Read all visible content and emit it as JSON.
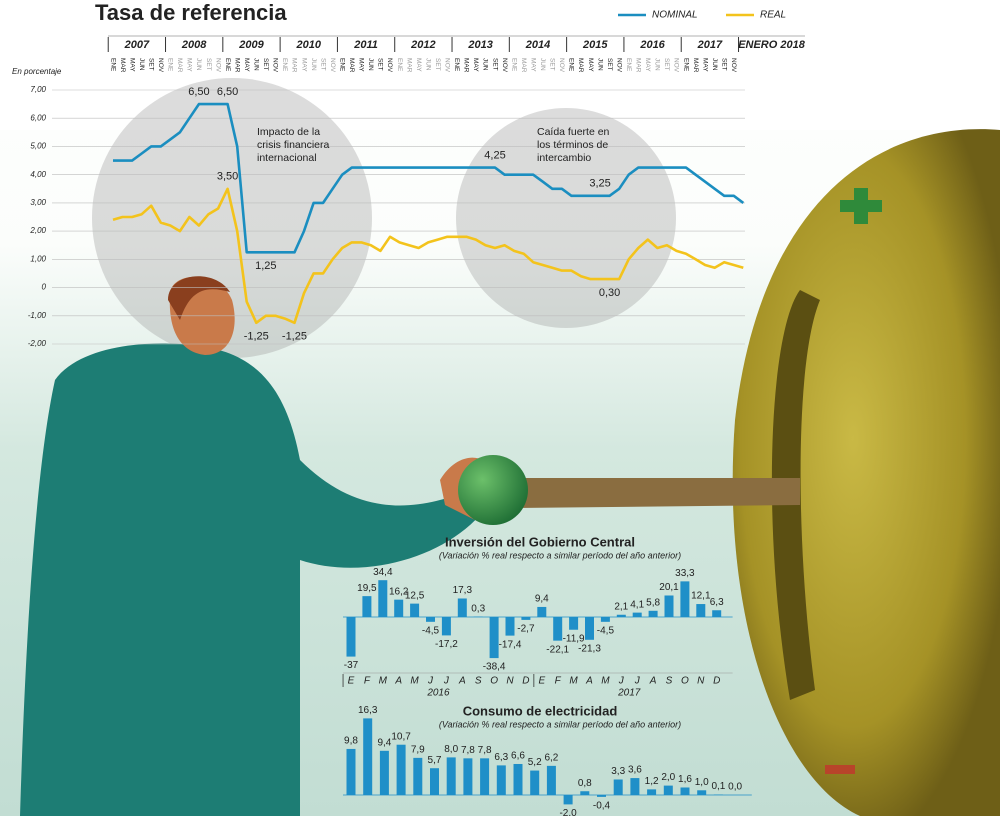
{
  "chart_data": [
    {
      "type": "line",
      "title": "Tasa de referencia",
      "y_label": "En porcentaje",
      "categories": [
        "ENE",
        "MAR",
        "MAY",
        "JUN",
        "SET",
        "NOV",
        "ENE",
        "MAR",
        "MAY",
        "JUN",
        "SET",
        "NOV",
        "ENE",
        "MAR",
        "MAY",
        "JUN",
        "SET",
        "NOV",
        "ENE",
        "MAR",
        "MAY",
        "JUN",
        "SET",
        "NOV",
        "ENE",
        "MAR",
        "MAY",
        "JUN",
        "SET",
        "NOV",
        "ENE",
        "MAR",
        "MAY",
        "JUN",
        "SET",
        "NOV",
        "ENE",
        "MAR",
        "MAY",
        "JUN",
        "SET",
        "NOV",
        "ENE",
        "MAR",
        "MAY",
        "JUN",
        "SET",
        "NOV",
        "ENE",
        "MAR",
        "MAY",
        "JUN",
        "SET",
        "NOV",
        "ENE",
        "MAR",
        "MAY",
        "JUN",
        "SET",
        "NOV",
        "ENE",
        "MAR",
        "MAY",
        "JUN",
        "SET",
        "NOV",
        null
      ],
      "year_labels": [
        "2007",
        "2008",
        "2009",
        "2010",
        "2011",
        "2012",
        "2013",
        "2014",
        "2015",
        "2016",
        "2017",
        "ENERO 2018"
      ],
      "series": [
        {
          "name": "NOMINAL",
          "color": "#1b8ec0",
          "values": [
            4.5,
            4.5,
            4.5,
            4.75,
            5,
            5,
            5.25,
            5.5,
            6,
            6.5,
            6.5,
            6.5,
            6.5,
            5,
            1.25,
            1.25,
            1.25,
            1.25,
            1.25,
            1.25,
            2,
            3,
            3,
            3.5,
            4,
            4.25,
            4.25,
            4.25,
            4.25,
            4.25,
            4.25,
            4.25,
            4.25,
            4.25,
            4.25,
            4.25,
            4.25,
            4.25,
            4.25,
            4.25,
            4.25,
            4,
            4,
            4,
            4,
            3.75,
            3.5,
            3.5,
            3.25,
            3.25,
            3.25,
            3.25,
            3.25,
            3.5,
            4,
            4.25,
            4.25,
            4.25,
            4.25,
            4.25,
            4.25,
            4,
            3.75,
            3.5,
            3.25,
            3.25,
            3
          ],
          "value_labels": [
            null,
            null,
            null,
            null,
            null,
            null,
            null,
            null,
            null,
            "6,50",
            null,
            null,
            "6,50",
            null,
            null,
            null,
            "1,25",
            null,
            null,
            null,
            null,
            null,
            null,
            null,
            null,
            null,
            null,
            null,
            null,
            null,
            null,
            null,
            null,
            null,
            null,
            null,
            null,
            null,
            null,
            null,
            "4,25",
            null,
            null,
            null,
            null,
            null,
            null,
            null,
            null,
            null,
            null,
            "3,25",
            null,
            null,
            null,
            null,
            null,
            null,
            null,
            null,
            null,
            null,
            null,
            null,
            null,
            null,
            null
          ]
        },
        {
          "name": "REAL",
          "color": "#f3c31c",
          "values": [
            2.4,
            2.5,
            2.5,
            2.6,
            2.9,
            2.3,
            2.2,
            2,
            2.5,
            2.2,
            2.6,
            2.8,
            3.5,
            2,
            -0.5,
            -1.25,
            -1,
            -1,
            -1.1,
            -1.25,
            -0.2,
            0.5,
            0.5,
            1,
            1.4,
            1.6,
            1.6,
            1.5,
            1.3,
            1.8,
            1.6,
            1.5,
            1.4,
            1.6,
            1.7,
            1.8,
            1.8,
            1.8,
            1.7,
            1.5,
            1.4,
            1.5,
            1.3,
            1.2,
            0.9,
            0.8,
            0.7,
            0.6,
            0.6,
            0.4,
            0.3,
            0.3,
            0.3,
            0.3,
            1,
            1.4,
            1.7,
            1.4,
            1.5,
            1.3,
            1.2,
            1,
            0.8,
            0.7,
            0.9,
            0.8,
            0.7
          ],
          "value_labels": [
            null,
            null,
            null,
            null,
            null,
            null,
            null,
            null,
            null,
            null,
            null,
            null,
            "3,50",
            null,
            null,
            "-1,25",
            null,
            null,
            null,
            "-1,25",
            null,
            null,
            null,
            null,
            null,
            null,
            null,
            null,
            null,
            null,
            null,
            null,
            null,
            null,
            null,
            null,
            null,
            null,
            null,
            null,
            null,
            null,
            null,
            null,
            null,
            null,
            null,
            null,
            null,
            null,
            null,
            null,
            "0,30",
            null,
            null,
            null,
            null,
            null,
            null,
            null,
            null,
            null,
            null,
            null,
            null,
            null,
            null
          ]
        }
      ],
      "ylim": [
        -2,
        7
      ],
      "yticks": [
        {
          "value": 7,
          "label": "7,00"
        },
        {
          "value": 6,
          "label": "6,00"
        },
        {
          "value": 5,
          "label": "5,00"
        },
        {
          "value": 4,
          "label": "4,00"
        },
        {
          "value": 3,
          "label": "3,00"
        },
        {
          "value": 2,
          "label": "2,00"
        },
        {
          "value": 1,
          "label": "1,00"
        },
        0,
        {
          "value": -1,
          "label": "-1,00"
        },
        {
          "value": -2,
          "label": "-2,00"
        }
      ],
      "grid": true,
      "legend": "top-right",
      "annotations": [
        [
          "Impacto de la",
          "crisis financiera",
          "internacional"
        ],
        [
          "Caída fuerte en",
          "los términos de",
          "intercambio"
        ]
      ]
    },
    {
      "type": "bar",
      "title": "Inversión del Gobierno Central",
      "subtitle": "(Variación % real respecto a similar período del año anterior)",
      "categories": [
        "E",
        "F",
        "M",
        "A",
        "M",
        "J",
        "J",
        "A",
        "S",
        "O",
        "N",
        "D",
        "E",
        "F",
        "M",
        "A",
        "M",
        "J",
        "J",
        "A",
        "S",
        "O",
        "N",
        "D"
      ],
      "year_labels": [
        "2016",
        "2017"
      ],
      "color": "#1f8fc8",
      "values": [
        -37,
        19.5,
        34.4,
        16.2,
        12.5,
        -4.5,
        -17.2,
        17.3,
        0.3,
        -38.4,
        -17.4,
        -2.7,
        9.4,
        -22.1,
        -11.9,
        -21.3,
        -4.5,
        2.1,
        4.1,
        5.8,
        20.1,
        33.3,
        12.1,
        6.3
      ],
      "value_labels": [
        "-37",
        "19,5",
        "34,4",
        "16,2",
        "12,5",
        "-4,5",
        "-17,2",
        "17,3",
        "0,3",
        "-38,4",
        "-17,4",
        "-2,7",
        "9,4",
        "-22,1",
        "-11,9",
        "-21,3",
        "-4,5",
        "2,1",
        "4,1",
        "5,8",
        "20,1",
        "33,3",
        "12,1",
        "6,3"
      ]
    },
    {
      "type": "bar",
      "title": "Consumo de electricidad",
      "subtitle": "(Variación % real respecto a similar período del año anterior)",
      "color": "#1f8fc8",
      "values": [
        9.8,
        16.3,
        9.4,
        10.7,
        7.9,
        5.7,
        8.0,
        7.8,
        7.8,
        6.3,
        6.6,
        5.2,
        6.2,
        -2.0,
        0.8,
        -0.4,
        3.3,
        3.6,
        1.2,
        2.0,
        1.6,
        1.0,
        0.1,
        0.0
      ],
      "value_labels": [
        "9,8",
        "16,3",
        "9,4",
        "10,7",
        "7,9",
        "5,7",
        "8,0",
        "7,8",
        "7,8",
        "6,3",
        "6,6",
        "5,2",
        "6,2",
        "-2,0",
        "0,8",
        "-0,4",
        "3,3",
        "3,6",
        "1,2",
        "2,0",
        "1,6",
        "1,0",
        "0,1",
        "0,0"
      ]
    }
  ]
}
